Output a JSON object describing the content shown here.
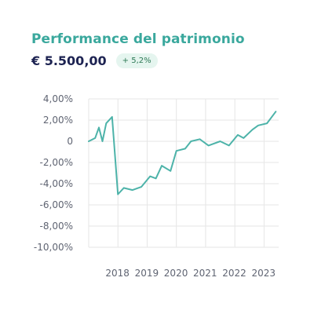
{
  "header": {
    "title": "Performance del patrimonio",
    "amount": "€ 5.500,00",
    "change_badge": "+ 5,2%"
  },
  "colors": {
    "title": "#3aa89d",
    "amount": "#1d2352",
    "line": "#4db3a9",
    "grid": "#e6e6e6",
    "badge_bg": "#e5f5ef",
    "badge_text": "#2f7a56"
  },
  "chart_data": {
    "type": "line",
    "title": "",
    "xlabel": "",
    "ylabel": "",
    "grid": true,
    "ylim": [
      -10,
      4
    ],
    "xlim": [
      2017.5,
      2023.5
    ],
    "y_ticks": [
      4,
      2,
      0,
      -2,
      -4,
      -6,
      -8,
      -10
    ],
    "y_tick_labels": [
      "4,00%",
      "2,00%",
      "0",
      "-2,00%",
      "-4,00%",
      "-6,00%",
      "-8,00%",
      "-10,00%"
    ],
    "x_ticks": [
      2018,
      2019,
      2020,
      2021,
      2022,
      2023
    ],
    "x_tick_labels": [
      "2018",
      "2019",
      "2020",
      "2021",
      "2022",
      "2023"
    ],
    "series": [
      {
        "values": [
          {
            "x": 2017.5,
            "y": 0.0
          },
          {
            "x": 2017.72,
            "y": 0.3
          },
          {
            "x": 2017.85,
            "y": 1.3
          },
          {
            "x": 2017.97,
            "y": 0.0
          },
          {
            "x": 2018.1,
            "y": 1.7
          },
          {
            "x": 2018.3,
            "y": 2.3
          },
          {
            "x": 2018.5,
            "y": -5.0
          },
          {
            "x": 2018.7,
            "y": -4.4
          },
          {
            "x": 2019.0,
            "y": -4.6
          },
          {
            "x": 2019.3,
            "y": -4.3
          },
          {
            "x": 2019.6,
            "y": -3.3
          },
          {
            "x": 2019.8,
            "y": -3.5
          },
          {
            "x": 2020.0,
            "y": -2.3
          },
          {
            "x": 2020.3,
            "y": -2.8
          },
          {
            "x": 2020.5,
            "y": -0.9
          },
          {
            "x": 2020.8,
            "y": -0.7
          },
          {
            "x": 2021.0,
            "y": 0.0
          },
          {
            "x": 2021.3,
            "y": 0.2
          },
          {
            "x": 2021.6,
            "y": -0.4
          },
          {
            "x": 2022.0,
            "y": 0.0
          },
          {
            "x": 2022.3,
            "y": -0.4
          },
          {
            "x": 2022.6,
            "y": 0.6
          },
          {
            "x": 2022.8,
            "y": 0.3
          },
          {
            "x": 2023.1,
            "y": 1.1
          },
          {
            "x": 2023.3,
            "y": 1.5
          },
          {
            "x": 2023.6,
            "y": 1.7
          },
          {
            "x": 2023.9,
            "y": 2.8
          }
        ]
      }
    ]
  }
}
